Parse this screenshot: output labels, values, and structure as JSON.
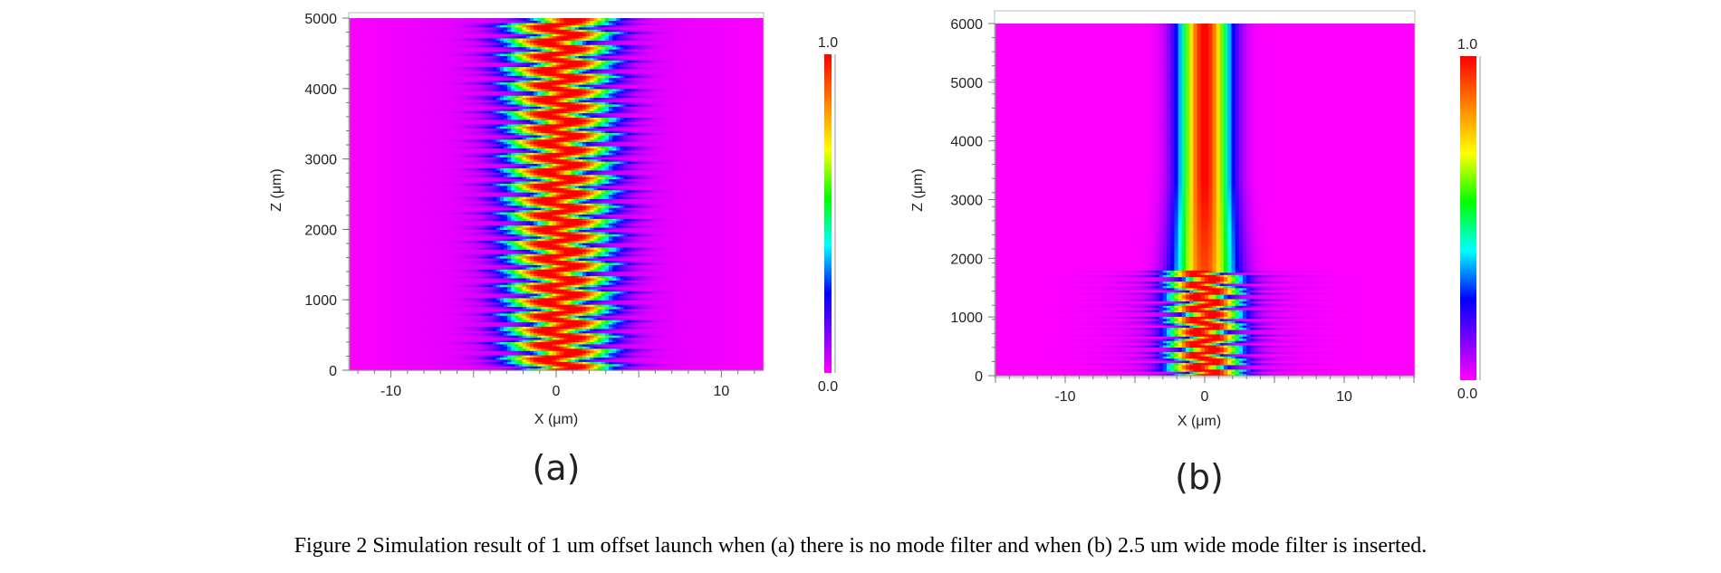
{
  "chart_data": [
    {
      "type": "heatmap",
      "panel_label": "(a)",
      "xlabel": "X (μm)",
      "ylabel": "Z (μm)",
      "xlim": [
        -12.5,
        12.5
      ],
      "ylim": [
        0,
        5000
      ],
      "x_ticks": [
        -10,
        0,
        10
      ],
      "y_ticks": [
        0,
        1000,
        2000,
        3000,
        4000,
        5000
      ],
      "colorbar": {
        "min_label": "0.0",
        "max_label": "1.0"
      },
      "beam": {
        "center_um": 0.2,
        "half_width_um": 3.2,
        "oscillation_period_um": 205,
        "oscillation_amplitude_um": 1.0
      },
      "colors": {
        "background": "#ff00ff"
      }
    },
    {
      "type": "heatmap",
      "panel_label": "(b)",
      "xlabel": "X (μm)",
      "ylabel": "Z (μm)",
      "xlim": [
        -15,
        15
      ],
      "ylim": [
        0,
        6000
      ],
      "x_ticks": [
        -10,
        0,
        10
      ],
      "y_ticks": [
        0,
        1000,
        2000,
        3000,
        4000,
        5000,
        6000
      ],
      "colorbar": {
        "min_label": "0.0",
        "max_label": "1.0"
      },
      "beam": {
        "center_um": 0.0,
        "half_width_um": 2.6,
        "filter_start_um": 1800,
        "oscillation_period_um": 200
      },
      "colors": {
        "background": "#ff00ff"
      }
    }
  ],
  "caption": "Figure 2 Simulation result of 1 um offset launch when (a) there is no mode filter and when (b) 2.5 um wide mode filter is inserted."
}
